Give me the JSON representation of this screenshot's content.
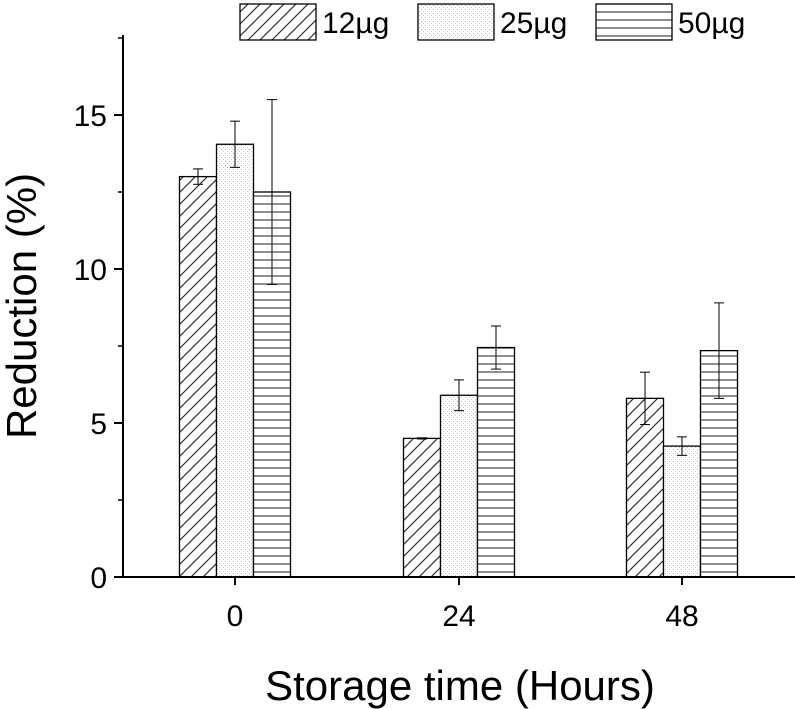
{
  "chart_data": {
    "type": "bar",
    "title": "",
    "xlabel": "Storage time (Hours)",
    "ylabel": "Reduction (%)",
    "categories": [
      "0",
      "24",
      "48"
    ],
    "ylim": [
      0,
      17.5
    ],
    "yticks": [
      0,
      5,
      10,
      15
    ],
    "grid": false,
    "legend": "top-right",
    "series": [
      {
        "name": "12µg",
        "pattern": "diagonal-hatch",
        "values": [
          13.0,
          4.5,
          5.8
        ],
        "errors": [
          0.25,
          0.02,
          0.85
        ]
      },
      {
        "name": "25µg",
        "pattern": "dotted-fill",
        "values": [
          14.05,
          5.9,
          4.25
        ],
        "errors": [
          0.75,
          0.5,
          0.3
        ]
      },
      {
        "name": "50µg",
        "pattern": "horizontal-lines",
        "values": [
          12.5,
          7.45,
          7.35
        ],
        "errors": [
          3.0,
          0.7,
          1.55
        ]
      }
    ]
  }
}
